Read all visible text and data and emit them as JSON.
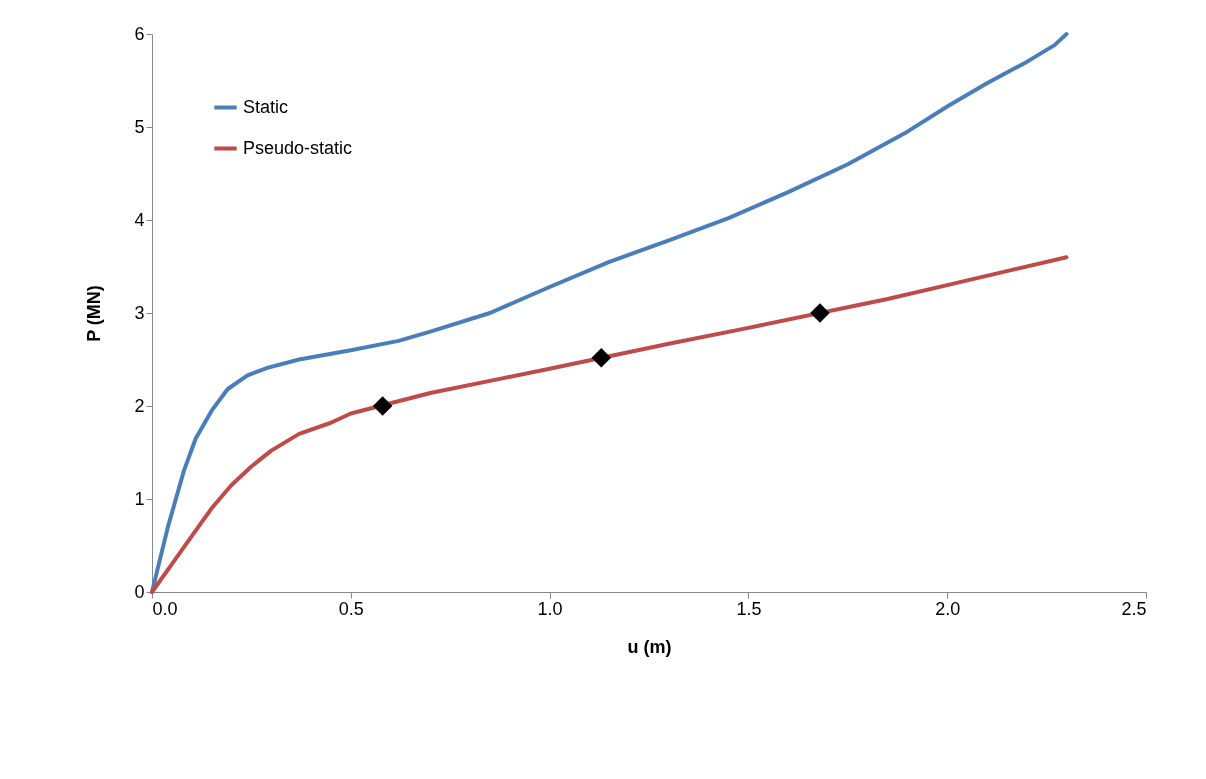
{
  "chart_data": {
    "type": "line",
    "xlabel": "u (m)",
    "ylabel": "P (MN)",
    "xlim": [
      0,
      2.5
    ],
    "ylim": [
      0,
      6
    ],
    "xticks": [
      {
        "value": 0,
        "label": "0.0"
      },
      {
        "value": 0.5,
        "label": "0.5"
      },
      {
        "value": 1,
        "label": "1.0"
      },
      {
        "value": 1.5,
        "label": "1.5"
      },
      {
        "value": 2,
        "label": "2.0"
      },
      {
        "value": 2.5,
        "label": "2.5"
      }
    ],
    "yticks": [
      0,
      1,
      2,
      3,
      4,
      5,
      6
    ],
    "grid": false,
    "legend": "top left",
    "series": [
      {
        "name": "Static",
        "color": "#4a7ebb",
        "x": [
          0,
          0.04,
          0.08,
          0.11,
          0.15,
          0.19,
          0.24,
          0.29,
          0.37,
          0.5,
          0.62,
          0.7,
          0.85,
          1.0,
          1.15,
          1.3,
          1.45,
          1.6,
          1.75,
          1.9,
          2.0,
          2.1,
          2.2,
          2.27,
          2.3
        ],
        "values": [
          0,
          0.7,
          1.3,
          1.65,
          1.95,
          2.18,
          2.33,
          2.41,
          2.5,
          2.6,
          2.7,
          2.8,
          3.0,
          3.28,
          3.55,
          3.78,
          4.02,
          4.3,
          4.6,
          4.95,
          5.22,
          5.47,
          5.7,
          5.88,
          6.0
        ]
      },
      {
        "name": "Pseudo-static",
        "color": "#be4b48",
        "x": [
          0,
          0.05,
          0.1,
          0.15,
          0.2,
          0.25,
          0.3,
          0.37,
          0.45,
          0.5,
          0.7,
          0.85,
          1.0,
          1.3,
          1.5,
          1.85,
          2.0,
          2.15,
          2.3
        ],
        "values": [
          0,
          0.3,
          0.6,
          0.9,
          1.15,
          1.35,
          1.52,
          1.7,
          1.82,
          1.92,
          2.14,
          2.27,
          2.4,
          2.67,
          2.84,
          3.15,
          3.3,
          3.45,
          3.6
        ]
      },
      {
        "type": "scatter",
        "marker": "diamond",
        "color": "#000000",
        "x": [
          0.58,
          1.13,
          1.68
        ],
        "values": [
          2.0,
          2.52,
          3.0
        ]
      }
    ]
  }
}
